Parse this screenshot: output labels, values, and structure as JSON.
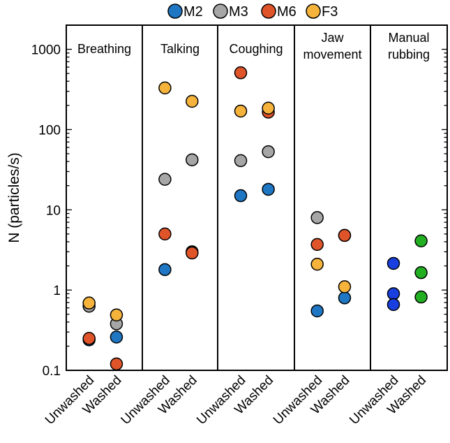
{
  "chart_data": {
    "type": "scatter",
    "ylabel": "N (particles/s)",
    "yscale": "log",
    "ylim": [
      0.1,
      2000
    ],
    "yticks": [
      {
        "value": 0.1,
        "label": "0.1"
      },
      {
        "value": 1,
        "label": "1"
      },
      {
        "value": 10,
        "label": "10"
      },
      {
        "value": 100,
        "label": "100"
      },
      {
        "value": 1000,
        "label": "1000"
      }
    ],
    "x_categories": [
      "Unwashed",
      "Washed"
    ],
    "legend": {
      "placement": "top",
      "entries": [
        {
          "name": "M2",
          "color": "#1f77c4"
        },
        {
          "name": "M3",
          "color": "#a6a6a6"
        },
        {
          "name": "M6",
          "color": "#e0542a"
        },
        {
          "name": "F3",
          "color": "#f5b33c"
        }
      ]
    },
    "panels": [
      {
        "title_lines": [
          "Breathing"
        ],
        "points": [
          {
            "series": "M2",
            "x": "Unwashed",
            "y": 0.24
          },
          {
            "series": "M3",
            "x": "Unwashed",
            "y": 0.63
          },
          {
            "series": "M6",
            "x": "Unwashed",
            "y": 0.25
          },
          {
            "series": "F3",
            "x": "Unwashed",
            "y": 0.69
          },
          {
            "series": "M2",
            "x": "Washed",
            "y": 0.26
          },
          {
            "series": "M3",
            "x": "Washed",
            "y": 0.38
          },
          {
            "series": "M6",
            "x": "Washed",
            "y": 0.12
          },
          {
            "series": "F3",
            "x": "Washed",
            "y": 0.49
          }
        ]
      },
      {
        "title_lines": [
          "Talking"
        ],
        "points": [
          {
            "series": "M2",
            "x": "Unwashed",
            "y": 1.8
          },
          {
            "series": "M3",
            "x": "Unwashed",
            "y": 24
          },
          {
            "series": "M6",
            "x": "Unwashed",
            "y": 5
          },
          {
            "series": "F3",
            "x": "Unwashed",
            "y": 330
          },
          {
            "series": "M2",
            "x": "Washed",
            "y": 3.0
          },
          {
            "series": "M3",
            "x": "Washed",
            "y": 42
          },
          {
            "series": "M6",
            "x": "Washed",
            "y": 2.9
          },
          {
            "series": "F3",
            "x": "Washed",
            "y": 225
          }
        ]
      },
      {
        "title_lines": [
          "Coughing"
        ],
        "points": [
          {
            "series": "M2",
            "x": "Unwashed",
            "y": 15
          },
          {
            "series": "M3",
            "x": "Unwashed",
            "y": 41
          },
          {
            "series": "M6",
            "x": "Unwashed",
            "y": 510
          },
          {
            "series": "F3",
            "x": "Unwashed",
            "y": 170
          },
          {
            "series": "M2",
            "x": "Washed",
            "y": 18
          },
          {
            "series": "M3",
            "x": "Washed",
            "y": 53
          },
          {
            "series": "M6",
            "x": "Washed",
            "y": 165
          },
          {
            "series": "F3",
            "x": "Washed",
            "y": 185
          }
        ]
      },
      {
        "title_lines": [
          "Jaw",
          "movement"
        ],
        "points": [
          {
            "series": "M2",
            "x": "Unwashed",
            "y": 0.55
          },
          {
            "series": "M3",
            "x": "Unwashed",
            "y": 8
          },
          {
            "series": "M6",
            "x": "Unwashed",
            "y": 3.7
          },
          {
            "series": "F3",
            "x": "Unwashed",
            "y": 2.1
          },
          {
            "series": "M2",
            "x": "Washed",
            "y": 0.8
          },
          {
            "series": "M3",
            "x": "Washed",
            "y": 4.8
          },
          {
            "series": "M6",
            "x": "Washed",
            "y": 4.8
          },
          {
            "series": "F3",
            "x": "Washed",
            "y": 1.1
          }
        ]
      },
      {
        "title_lines": [
          "Manual",
          "rubbing"
        ],
        "points": [
          {
            "color": "#1a3fe0",
            "x": "Unwashed",
            "y": 2.15
          },
          {
            "color": "#1a3fe0",
            "x": "Unwashed",
            "y": 0.9
          },
          {
            "color": "#1a3fe0",
            "x": "Unwashed",
            "y": 0.66
          },
          {
            "color": "#22b022",
            "x": "Washed",
            "y": 4.1
          },
          {
            "color": "#22b022",
            "x": "Washed",
            "y": 1.65
          },
          {
            "color": "#22b022",
            "x": "Washed",
            "y": 0.82
          }
        ]
      }
    ]
  }
}
